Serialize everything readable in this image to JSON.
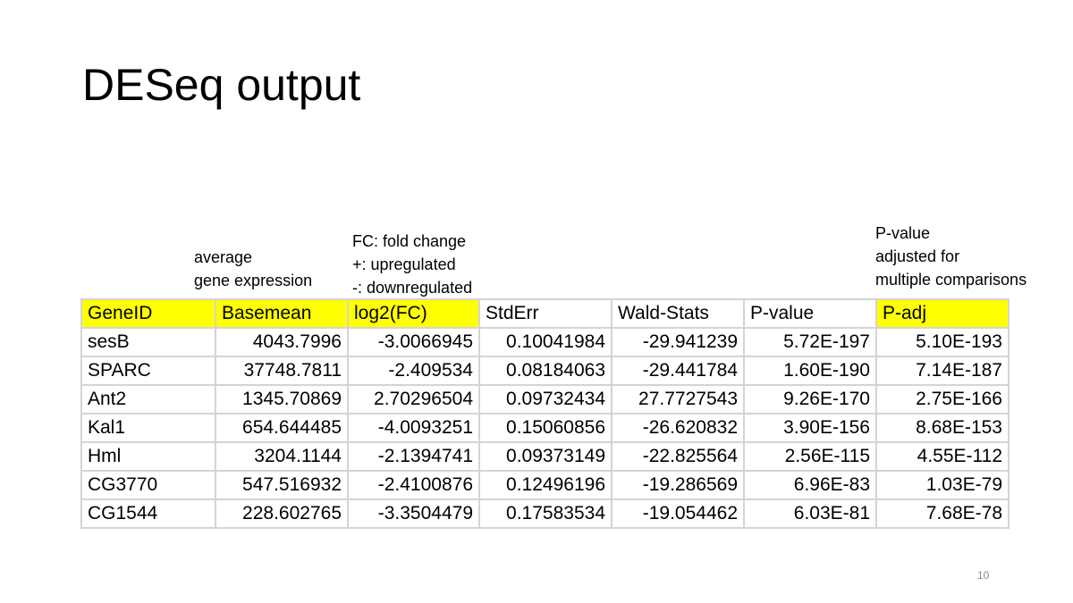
{
  "slide": {
    "title": "DESeq output",
    "slide_number": "10"
  },
  "notes": {
    "basemean": [
      "average",
      "gene expression"
    ],
    "fc": [
      "FC: fold change",
      "+: upregulated",
      "-: downregulated"
    ],
    "padj": [
      "P-value",
      "adjusted for",
      "multiple comparisons"
    ]
  },
  "colors": {
    "highlight": "#ffff00",
    "gridline": "#d4d4d4"
  },
  "table": {
    "headers": [
      "GeneID",
      "Basemean",
      "log2(FC)",
      "StdErr",
      "Wald-Stats",
      "P-value",
      "P-adj"
    ],
    "highlighted_headers": [
      0,
      1,
      2,
      6
    ],
    "rows": [
      [
        "sesB",
        "4043.7996",
        "-3.0066945",
        "0.10041984",
        "-29.941239",
        "5.72E-197",
        "5.10E-193"
      ],
      [
        "SPARC",
        "37748.7811",
        "-2.409534",
        "0.08184063",
        "-29.441784",
        "1.60E-190",
        "7.14E-187"
      ],
      [
        "Ant2",
        "1345.70869",
        "2.70296504",
        "0.09732434",
        "27.7727543",
        "9.26E-170",
        "2.75E-166"
      ],
      [
        "Kal1",
        "654.644485",
        "-4.0093251",
        "0.15060856",
        "-26.620832",
        "3.90E-156",
        "8.68E-153"
      ],
      [
        "Hml",
        "3204.1144",
        "-2.1394741",
        "0.09373149",
        "-22.825564",
        "2.56E-115",
        "4.55E-112"
      ],
      [
        "CG3770",
        "547.516932",
        "-2.4100876",
        "0.12496196",
        "-19.286569",
        "6.96E-83",
        "1.03E-79"
      ],
      [
        "CG1544",
        "228.602765",
        "-3.3504479",
        "0.17583534",
        "-19.054462",
        "6.03E-81",
        "7.68E-78"
      ]
    ]
  }
}
